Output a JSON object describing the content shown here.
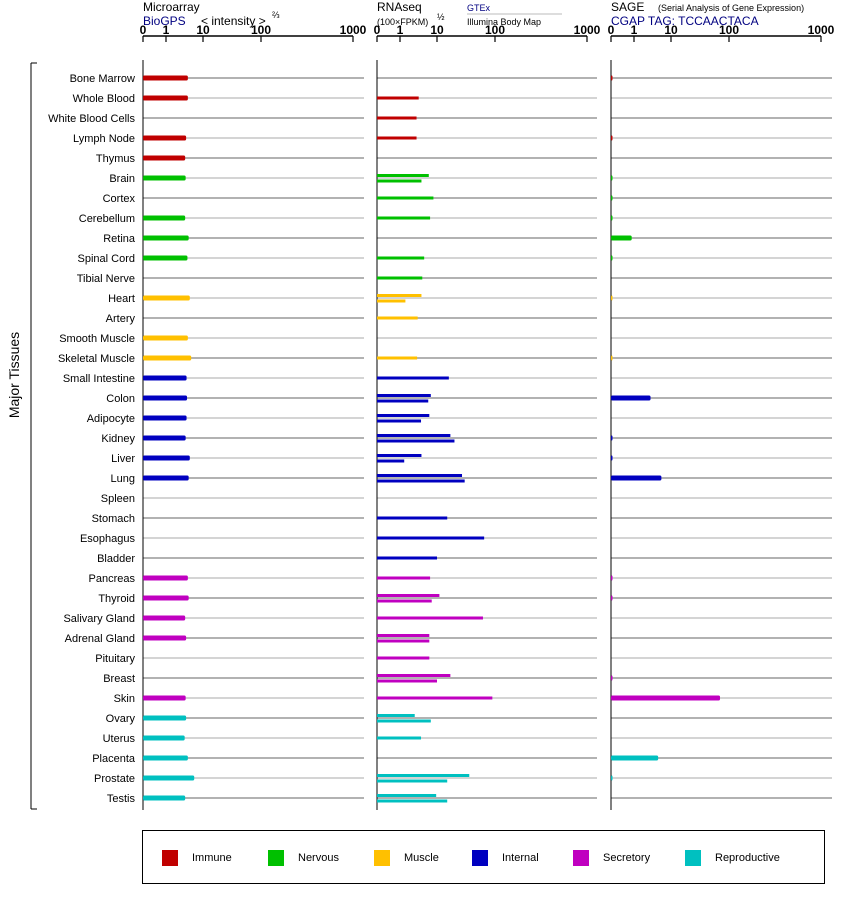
{
  "chart_data": {
    "type": "bar",
    "y_axis_label": "Major Tissues",
    "categories": [
      "Bone Marrow",
      "Whole Blood",
      "White Blood Cells",
      "Lymph Node",
      "Thymus",
      "Brain",
      "Cortex",
      "Cerebellum",
      "Retina",
      "Spinal Cord",
      "Tibial Nerve",
      "Heart",
      "Artery",
      "Smooth Muscle",
      "Skeletal Muscle",
      "Small Intestine",
      "Colon",
      "Adipocyte",
      "Kidney",
      "Liver",
      "Lung",
      "Spleen",
      "Stomach",
      "Esophagus",
      "Bladder",
      "Pancreas",
      "Thyroid",
      "Salivary Gland",
      "Adrenal Gland",
      "Pituitary",
      "Breast",
      "Skin",
      "Ovary",
      "Uterus",
      "Placenta",
      "Prostate",
      "Testis"
    ],
    "groups": [
      "Immune",
      "Immune",
      "Immune",
      "Immune",
      "Immune",
      "Nervous",
      "Nervous",
      "Nervous",
      "Nervous",
      "Nervous",
      "Nervous",
      "Muscle",
      "Muscle",
      "Muscle",
      "Muscle",
      "Internal",
      "Internal",
      "Internal",
      "Internal",
      "Internal",
      "Internal",
      "Internal",
      "Internal",
      "Internal",
      "Internal",
      "Secretory",
      "Secretory",
      "Secretory",
      "Secretory",
      "Secretory",
      "Secretory",
      "Secretory",
      "Reproductive",
      "Reproductive",
      "Reproductive",
      "Reproductive",
      "Reproductive"
    ],
    "ticks": [
      0,
      1,
      10,
      100,
      1000
    ],
    "panels": [
      {
        "title": "Microarray",
        "subtitle_source": "BioGPS",
        "subtitle_text": "< intensity >",
        "subtitle_sup": "⅔",
        "series": [
          {
            "name": "BioGPS",
            "values": [
              3.9,
              3.9,
              null,
              3.5,
              3.3,
              3.4,
              null,
              3.3,
              4.1,
              3.8,
              null,
              4.4,
              null,
              3.9,
              4.8,
              3.6,
              3.7,
              3.6,
              3.4,
              4.4,
              4.1,
              null,
              null,
              null,
              null,
              3.9,
              4.1,
              3.3,
              3.5,
              null,
              null,
              3.4,
              3.5,
              3.2,
              3.9,
              5.8,
              3.3
            ]
          }
        ]
      },
      {
        "title": "RNAseq",
        "subtitle_text": "(100×FPKM)",
        "subtitle_sup": "½",
        "series_labels": [
          "GTEx",
          "Illumina Body Map"
        ],
        "series": [
          {
            "name": "GTEx",
            "values": [
              null,
              3.2,
              null,
              null,
              null,
              6.0,
              8.0,
              6.5,
              null,
              4.5,
              4.0,
              3.8,
              null,
              null,
              2.9,
              16,
              6.8,
              6.2,
              17,
              3.8,
              27,
              null,
              15,
              65,
              10,
              6.5,
              11,
              62,
              6.2,
              6.2,
              17,
              90,
              2.5,
              null,
              null,
              36,
              9.5
            ]
          },
          {
            "name": "Illumina Body Map",
            "values": [
              null,
              null,
              2.8,
              2.8,
              null,
              3.8,
              null,
              null,
              null,
              null,
              null,
              1.4,
              3.0,
              null,
              null,
              null,
              5.8,
              3.7,
              20,
              1.3,
              30,
              null,
              null,
              null,
              null,
              null,
              7.2,
              null,
              6.2,
              null,
              10,
              null,
              6.8,
              3.7,
              null,
              15,
              15
            ]
          }
        ]
      },
      {
        "title": "SAGE",
        "title_note": "(Serial Analysis of Gene Expression)",
        "subtitle_text": "CGAP TAG: TCCAACTACA",
        "series": [
          {
            "name": "SAGE",
            "values": [
              0.02,
              null,
              null,
              0.05,
              null,
              0.02,
              0.01,
              0.02,
              0.9,
              0.02,
              null,
              0.01,
              null,
              null,
              0.01,
              null,
              2.8,
              null,
              0.06,
              0.06,
              5.5,
              null,
              null,
              null,
              null,
              0.05,
              0.05,
              null,
              null,
              null,
              0.06,
              70,
              null,
              null,
              4.5,
              0.02,
              null
            ]
          }
        ]
      }
    ],
    "legend": [
      {
        "name": "Immune",
        "color": "#c00000"
      },
      {
        "name": "Nervous",
        "color": "#00c000"
      },
      {
        "name": "Muscle",
        "color": "#ffc000"
      },
      {
        "name": "Internal",
        "color": "#0000c0"
      },
      {
        "name": "Secretory",
        "color": "#c000c0"
      },
      {
        "name": "Reproductive",
        "color": "#00c0c0"
      }
    ]
  }
}
